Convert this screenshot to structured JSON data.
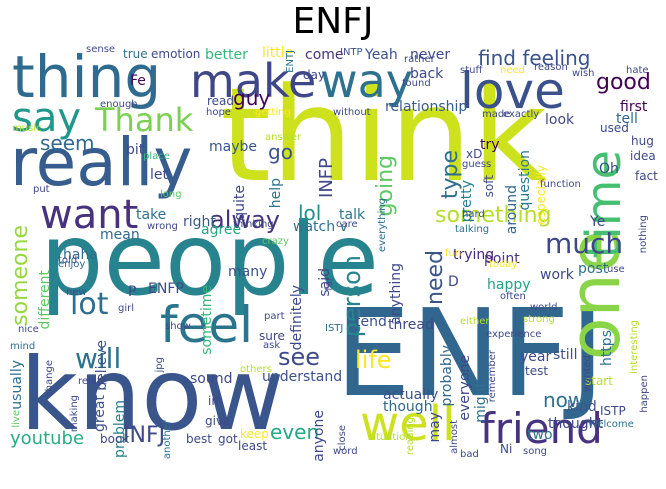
{
  "title": "ENFJ",
  "words": [
    {
      "text": "think",
      "color": "#cde11d"
    },
    {
      "text": "people",
      "color": "#27848e"
    },
    {
      "text": "ENFJ",
      "color": "#31678e"
    },
    {
      "text": "know",
      "color": "#3a548c"
    },
    {
      "text": "one",
      "color": "#8ad547"
    },
    {
      "text": "really",
      "color": "#365d8d"
    },
    {
      "text": "thing",
      "color": "#2f6b8e"
    },
    {
      "text": "love",
      "color": "#3b518b"
    },
    {
      "text": "make",
      "color": "#3f4788"
    },
    {
      "text": "way",
      "color": "#2d718e"
    },
    {
      "text": "time",
      "color": "#45bf70"
    },
    {
      "text": "feel",
      "color": "#2b748e"
    },
    {
      "text": "well",
      "color": "#cde11d"
    },
    {
      "text": "friend",
      "color": "#46327e"
    },
    {
      "text": "want",
      "color": "#46327e"
    },
    {
      "text": "say",
      "color": "#1f978b"
    },
    {
      "text": "Thank",
      "color": "#7ad151"
    },
    {
      "text": "much",
      "color": "#3f4788"
    },
    {
      "text": "lot",
      "color": "#2e6e8e"
    },
    {
      "text": "something",
      "color": "#b5de2b"
    },
    {
      "text": "find feeling",
      "color": "#3b528b"
    },
    {
      "text": "good",
      "color": "#440154"
    },
    {
      "text": "will",
      "color": "#2c738e"
    },
    {
      "text": "life",
      "color": "#fde725"
    },
    {
      "text": "see",
      "color": "#3e4a89"
    },
    {
      "text": "alway",
      "color": "#46327e"
    },
    {
      "text": "someone",
      "color": "#95d840"
    },
    {
      "text": "person",
      "color": "#25848e"
    },
    {
      "text": "type",
      "color": "#2e6e8e"
    },
    {
      "text": "going",
      "color": "#5ec962"
    },
    {
      "text": "guy",
      "color": "#440154"
    },
    {
      "text": "seem",
      "color": "#31688e"
    },
    {
      "text": "go",
      "color": "#3b528b"
    },
    {
      "text": "lol",
      "color": "#21918c"
    },
    {
      "text": "INFP",
      "color": "#3f4788"
    },
    {
      "text": "need",
      "color": "#3b528b"
    },
    {
      "text": "youtube",
      "color": "#27ad81"
    },
    {
      "text": "INFJ",
      "color": "#3e4989"
    },
    {
      "text": "even",
      "color": "#22a884"
    },
    {
      "text": "now",
      "color": "#2c728e"
    },
    {
      "text": "happy",
      "color": "#1fa188"
    },
    {
      "text": "thought",
      "color": "#3e4989"
    },
    {
      "text": "actually",
      "color": "#3b528b"
    },
    {
      "text": "though",
      "color": "#31688e"
    },
    {
      "text": "understand",
      "color": "#3b528b"
    },
    {
      "text": "sound",
      "color": "#3e4a89"
    },
    {
      "text": "trying",
      "color": "#482878"
    },
    {
      "text": "point",
      "color": "#46337f"
    },
    {
      "text": "usually",
      "color": "#2c728e"
    },
    {
      "text": "different",
      "color": "#5ec962"
    },
    {
      "text": "believe",
      "color": "#3b528b"
    },
    {
      "text": "great",
      "color": "#3b528b"
    },
    {
      "text": "problem",
      "color": "#26828e"
    },
    {
      "text": "relationship",
      "color": "#365c8d"
    },
    {
      "text": "better",
      "color": "#35b779"
    },
    {
      "text": "little",
      "color": "#fde725"
    },
    {
      "text": "come",
      "color": "#46327e"
    },
    {
      "text": "Yeah",
      "color": "#3b528b"
    },
    {
      "text": "never",
      "color": "#3e4a89"
    },
    {
      "text": "back",
      "color": "#3f4788"
    },
    {
      "text": "first",
      "color": "#440154"
    },
    {
      "text": "tell",
      "color": "#31688e"
    },
    {
      "text": "look",
      "color": "#3e4989"
    },
    {
      "text": "try",
      "color": "#440154"
    },
    {
      "text": "take",
      "color": "#2c728e"
    },
    {
      "text": "right",
      "color": "#38588c"
    },
    {
      "text": "talk",
      "color": "#2a788e"
    },
    {
      "text": "watch v",
      "color": "#2c728e"
    },
    {
      "text": "agree",
      "color": "#22a884"
    },
    {
      "text": "mean",
      "color": "#31688e"
    },
    {
      "text": "haha",
      "color": "#31688e"
    },
    {
      "text": "many",
      "color": "#3b528b"
    },
    {
      "text": "sometime",
      "color": "#35b779"
    },
    {
      "text": "definitely",
      "color": "#3e4989"
    },
    {
      "text": "ENFP",
      "color": "#3e4989"
    },
    {
      "text": "kind",
      "color": "#3b528b"
    },
    {
      "text": "still",
      "color": "#3b528b"
    },
    {
      "text": "two",
      "color": "#2a788e"
    },
    {
      "text": "post",
      "color": "#2c728e"
    },
    {
      "text": "work",
      "color": "#3e4989"
    },
    {
      "text": "tend",
      "color": "#3b528b"
    },
    {
      "text": "thread",
      "color": "#3e4a89"
    },
    {
      "text": "probably",
      "color": "#31688e"
    },
    {
      "text": "anything",
      "color": "#3e4989"
    },
    {
      "text": "said",
      "color": "#3e4989"
    },
    {
      "text": "ISTJ",
      "color": "#31688e"
    },
    {
      "text": "Oh",
      "color": "#3e4989"
    },
    {
      "text": "question",
      "color": "#2a788e"
    },
    {
      "text": "around",
      "color": "#31688e"
    },
    {
      "text": "pretty",
      "color": "#26828e"
    },
    {
      "text": "maybe",
      "color": "#38588c"
    },
    {
      "text": "let",
      "color": "#3e4989"
    },
    {
      "text": "bit",
      "color": "#3e4989"
    },
    {
      "text": "help",
      "color": "#2c728e"
    },
    {
      "text": "quite",
      "color": "#3e4989"
    },
    {
      "text": "hard",
      "color": "#3e4989"
    },
    {
      "text": "read",
      "color": "#3e4989"
    },
    {
      "text": "day",
      "color": "#3e4989"
    },
    {
      "text": "ENTJ",
      "color": "#2c728e"
    },
    {
      "text": "INTP",
      "color": "#3b528b"
    },
    {
      "text": "emotion",
      "color": "#3e4989"
    },
    {
      "text": "true",
      "color": "#2c728e"
    },
    {
      "text": "sense",
      "color": "#3e4989"
    },
    {
      "text": "Fe",
      "color": "#440154"
    },
    {
      "text": "hope",
      "color": "#3e4989"
    },
    {
      "text": "music",
      "color": "#b5de2b"
    },
    {
      "text": "getting",
      "color": "#fde725"
    },
    {
      "text": "without",
      "color": "#3e4989"
    },
    {
      "text": "answer",
      "color": "#b5de2b"
    },
    {
      "text": "place",
      "color": "#35b779"
    },
    {
      "text": "long",
      "color": "#5ec962"
    },
    {
      "text": "put",
      "color": "#3e4989"
    },
    {
      "text": "told",
      "color": "#3e4989"
    },
    {
      "text": "enjoy",
      "color": "#31688e"
    },
    {
      "text": "new",
      "color": "#3e4989"
    },
    {
      "text": "girl",
      "color": "#3e4989"
    },
    {
      "text": "nice",
      "color": "#3e4989"
    },
    {
      "text": "mind",
      "color": "#2c728e"
    },
    {
      "text": "live",
      "color": "#5ec962"
    },
    {
      "text": "wrong",
      "color": "#3e4989"
    },
    {
      "text": "thinking",
      "color": "#3e4989"
    },
    {
      "text": "crazy",
      "color": "#5ec962"
    },
    {
      "text": "care",
      "color": "#3e4989"
    },
    {
      "text": "everything",
      "color": "#2c728e"
    },
    {
      "text": "talking",
      "color": "#2c728e"
    },
    {
      "text": "today",
      "color": "#fde725"
    },
    {
      "text": "fun",
      "color": "#fde725"
    },
    {
      "text": "far",
      "color": "#3e4989"
    },
    {
      "text": "P",
      "color": "#3e4989"
    },
    {
      "text": "part",
      "color": "#3e4989"
    },
    {
      "text": "show",
      "color": "#3e4989"
    },
    {
      "text": "ask",
      "color": "#3e4989"
    },
    {
      "text": "others",
      "color": "#b5de2b"
    },
    {
      "text": "sure",
      "color": "#3e4989"
    },
    {
      "text": "im",
      "color": "#3e4989"
    },
    {
      "text": "give",
      "color": "#3e4989"
    },
    {
      "text": "keep",
      "color": "#fde725"
    },
    {
      "text": "best",
      "color": "#3e4989"
    },
    {
      "text": "got",
      "color": "#3e4989"
    },
    {
      "text": "least",
      "color": "#3e4989"
    },
    {
      "text": "book",
      "color": "#3e4989"
    },
    {
      "text": "another",
      "color": "#2c728e"
    },
    {
      "text": "making",
      "color": "#3e4989"
    },
    {
      "text": "relate",
      "color": "#3e4989"
    },
    {
      "text": "change",
      "color": "#3e4989"
    },
    {
      "text": "jpg",
      "color": "#3e4989"
    },
    {
      "text": "anyone",
      "color": "#3e4989"
    },
    {
      "text": "close",
      "color": "#3e4989"
    },
    {
      "text": "word",
      "color": "#3e4989"
    },
    {
      "text": "situation",
      "color": "#b5de2b"
    },
    {
      "text": "may",
      "color": "#3e4989"
    },
    {
      "text": "reading",
      "color": "#b5de2b"
    },
    {
      "text": "almost",
      "color": "#3e4989"
    },
    {
      "text": "everyone",
      "color": "#3e4989"
    },
    {
      "text": "might",
      "color": "#2c728e"
    },
    {
      "text": "bad",
      "color": "#3e4989"
    },
    {
      "text": "Ni",
      "color": "#3e4989"
    },
    {
      "text": "song",
      "color": "#3e4989"
    },
    {
      "text": "Welcome",
      "color": "#2c728e"
    },
    {
      "text": "ISTP",
      "color": "#3e4989"
    },
    {
      "text": "start",
      "color": "#b5de2b"
    },
    {
      "text": "remember",
      "color": "#3e4989"
    },
    {
      "text": "test",
      "color": "#3e4989"
    },
    {
      "text": "year",
      "color": "#3e4989"
    },
    {
      "text": "wanted",
      "color": "#3e4989"
    },
    {
      "text": "https",
      "color": "#2c728e"
    },
    {
      "text": "happen",
      "color": "#3e4989"
    },
    {
      "text": "interesting",
      "color": "#b5de2b"
    },
    {
      "text": "world",
      "color": "#3e4989"
    },
    {
      "text": "strong",
      "color": "#b5de2b"
    },
    {
      "text": "often",
      "color": "#3e4989"
    },
    {
      "text": "either",
      "color": "#b5de2b"
    },
    {
      "text": "experience",
      "color": "#3e4989"
    },
    {
      "text": "use",
      "color": "#3e4989"
    },
    {
      "text": "nothing",
      "color": "#3e4989"
    },
    {
      "text": "Ye",
      "color": "#3e4989"
    },
    {
      "text": "fact",
      "color": "#3e4989"
    },
    {
      "text": "idea",
      "color": "#3e4989"
    },
    {
      "text": "hug",
      "color": "#3e4989"
    },
    {
      "text": "used",
      "color": "#3e4989"
    },
    {
      "text": "especially",
      "color": "#fde725"
    },
    {
      "text": "function",
      "color": "#3e4989"
    },
    {
      "text": "soft",
      "color": "#3e4989"
    },
    {
      "text": "xD",
      "color": "#3e4989"
    },
    {
      "text": "guess",
      "color": "#3e4989"
    },
    {
      "text": "made",
      "color": "#3e4989"
    },
    {
      "text": "exactly",
      "color": "#3e4989"
    },
    {
      "text": "found",
      "color": "#3e4989"
    },
    {
      "text": "stuff",
      "color": "#3e4989"
    },
    {
      "text": "need2",
      "color": "#fde725"
    },
    {
      "text": "reason",
      "color": "#3e4989"
    },
    {
      "text": "wish",
      "color": "#3e4989"
    },
    {
      "text": "hate",
      "color": "#3e4989"
    },
    {
      "text": "rather",
      "color": "#3e4989"
    },
    {
      "text": "enough",
      "color": "#3e4989"
    },
    {
      "text": "D",
      "color": "#3e4989"
    }
  ]
}
